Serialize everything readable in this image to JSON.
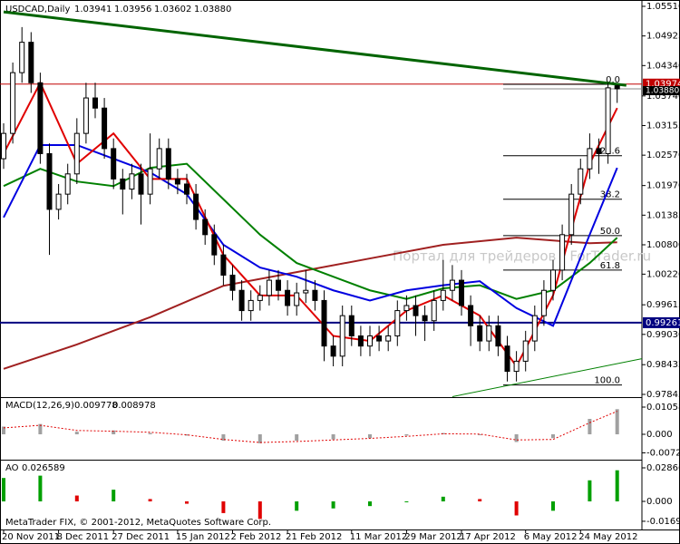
{
  "chart_data": {
    "type": "candlestick",
    "title": "USDCAD,Daily",
    "ohlc_labels": [
      "1.03941",
      "1.03956",
      "1.03602",
      "1.03880"
    ],
    "watermark": "Портал для трейдеров - ForTrader.ru",
    "footer": "MetaTrader FIX, © 2001-2012, MetaQuotes Software Corp.",
    "categories": [
      "20 Nov 2011",
      null,
      null,
      null,
      null,
      null,
      "8 Dec 2011",
      null,
      null,
      null,
      null,
      null,
      "27 Dec 2011",
      null,
      null,
      null,
      null,
      null,
      null,
      "15 Jan 2012",
      null,
      null,
      null,
      null,
      null,
      "2 Feb 2012",
      null,
      null,
      null,
      null,
      null,
      "21 Feb 2012",
      null,
      null,
      null,
      null,
      null,
      null,
      "11 Mar 2012",
      null,
      null,
      null,
      null,
      null,
      "29 Mar 2012",
      null,
      null,
      null,
      null,
      null,
      "17 Apr 2012",
      null,
      null,
      null,
      null,
      null,
      null,
      "6 May 2012",
      null,
      null,
      null,
      null,
      null,
      "24 May 2012",
      null,
      null,
      null,
      null
    ],
    "open": [
      1.025,
      1.03,
      1.042,
      1.048,
      1.04,
      1.026,
      1.015,
      1.018,
      1.022,
      1.03,
      1.037,
      1.035,
      1.027,
      1.021,
      1.019,
      1.022,
      1.018,
      1.023,
      1.027,
      1.021,
      1.02,
      1.018,
      1.013,
      1.01,
      1.006,
      1.002,
      0.999,
      0.995,
      0.997,
      0.998,
      1.001,
      0.999,
      0.996,
      0.9985,
      0.999,
      0.997,
      0.988,
      0.986,
      0.994,
      0.99,
      0.988,
      0.99,
      0.989,
      0.99,
      0.995,
      0.996,
      0.994,
      0.993,
      0.997,
      0.999,
      1.001,
      0.996,
      0.992,
      0.989,
      0.992,
      0.988,
      0.983,
      0.985,
      0.989,
      0.994,
      0.999,
      1.003,
      1.01,
      1.018,
      1.023,
      1.027,
      1.026,
      1.03941
    ],
    "high": [
      1.032,
      1.044,
      1.051,
      1.05,
      1.042,
      1.028,
      1.02,
      1.024,
      1.033,
      1.04,
      1.04,
      1.037,
      1.029,
      1.023,
      1.024,
      1.024,
      1.03,
      1.029,
      1.029,
      1.023,
      1.022,
      1.02,
      1.015,
      1.012,
      1.008,
      1.004,
      1.001,
      0.999,
      1.0,
      1.003,
      1.003,
      1.001,
      1.0005,
      1.003,
      1.001,
      0.999,
      0.99,
      0.996,
      0.996,
      0.992,
      0.992,
      0.992,
      0.992,
      0.997,
      0.998,
      0.998,
      0.996,
      0.999,
      1.005,
      1.004,
      1.003,
      0.998,
      0.994,
      0.994,
      0.994,
      0.99,
      0.987,
      0.991,
      0.996,
      1.001,
      1.005,
      1.012,
      1.02,
      1.025,
      1.03,
      1.029,
      1.04,
      1.03956
    ],
    "low": [
      1.023,
      1.028,
      1.04,
      1.038,
      1.024,
      1.006,
      1.013,
      1.016,
      1.02,
      1.028,
      1.033,
      1.025,
      1.019,
      1.014,
      1.017,
      1.012,
      1.016,
      1.021,
      1.019,
      1.018,
      1.016,
      1.011,
      1.008,
      1.004,
      1.0,
      0.997,
      0.993,
      0.993,
      0.995,
      0.996,
      0.997,
      0.994,
      0.994,
      0.9965,
      0.995,
      0.985,
      0.984,
      0.984,
      0.988,
      0.986,
      0.986,
      0.987,
      0.987,
      0.988,
      0.993,
      0.99,
      0.989,
      0.991,
      0.995,
      0.997,
      0.994,
      0.988,
      0.987,
      0.987,
      0.986,
      0.981,
      0.981,
      0.983,
      0.987,
      0.992,
      0.997,
      1.001,
      1.008,
      1.016,
      1.021,
      1.022,
      1.024,
      1.03602
    ],
    "close": [
      1.03,
      1.042,
      1.048,
      1.04,
      1.026,
      1.015,
      1.018,
      1.022,
      1.03,
      1.037,
      1.035,
      1.027,
      1.021,
      1.019,
      1.022,
      1.018,
      1.023,
      1.027,
      1.021,
      1.02,
      1.018,
      1.013,
      1.01,
      1.006,
      1.002,
      0.999,
      0.995,
      0.997,
      0.998,
      1.001,
      0.999,
      0.996,
      0.9985,
      0.999,
      0.997,
      0.988,
      0.986,
      0.994,
      0.99,
      0.988,
      0.99,
      0.989,
      0.99,
      0.995,
      0.996,
      0.994,
      0.993,
      0.997,
      0.999,
      1.001,
      0.996,
      0.992,
      0.989,
      0.992,
      0.988,
      0.983,
      0.985,
      0.989,
      0.994,
      0.999,
      1.003,
      1.01,
      1.018,
      1.023,
      1.027,
      1.026,
      1.039,
      1.0388
    ],
    "moving_averages": [
      {
        "color": "#e00000",
        "x": [
          0,
          4,
          8,
          12,
          16,
          20,
          24,
          28,
          32,
          36,
          40,
          44,
          48,
          52,
          56,
          60,
          64,
          67
        ],
        "values": [
          1.026,
          1.04,
          1.024,
          1.03,
          1.021,
          1.021,
          1.006,
          0.998,
          0.998,
          0.99,
          0.989,
          0.995,
          0.998,
          0.994,
          0.984,
          0.998,
          1.024,
          1.035
        ]
      },
      {
        "color": "#0000e0",
        "x": [
          0,
          4,
          8,
          12,
          16,
          20,
          24,
          28,
          32,
          36,
          40,
          44,
          48,
          52,
          56,
          60,
          64,
          67
        ],
        "values": [
          1.0134,
          1.0277,
          1.0277,
          1.025,
          1.0223,
          1.018,
          1.008,
          1.0035,
          1.0017,
          0.999,
          0.997,
          0.999,
          1.0,
          1.0008,
          0.9955,
          0.992,
          1.01,
          1.0232
        ]
      },
      {
        "color": "#008000",
        "x": [
          0,
          4,
          8,
          12,
          16,
          20,
          24,
          28,
          32,
          36,
          40,
          44,
          48,
          52,
          56,
          60,
          64,
          67
        ],
        "values": [
          1.0196,
          1.023,
          1.0205,
          1.0196,
          1.0232,
          1.024,
          1.017,
          1.01,
          1.0044,
          1.0017,
          0.999,
          0.9973,
          0.9994,
          1.0,
          0.9973,
          0.999,
          1.0044,
          1.0094
        ]
      },
      {
        "color": "#a02020",
        "x": [
          0,
          8,
          16,
          24,
          32,
          40,
          48,
          56,
          64,
          67
        ],
        "values": [
          0.9835,
          0.9883,
          0.9937,
          0.9999,
          1.0026,
          1.0053,
          1.008,
          1.0094,
          1.0083,
          1.0085
        ]
      }
    ],
    "trendlines": [
      {
        "color": "#006400",
        "width": 3,
        "x": [
          0,
          68
        ],
        "values": [
          1.054,
          1.0395
        ]
      },
      {
        "color": "#008000",
        "width": 1,
        "x": [
          49,
          69.7
        ],
        "values": [
          0.978,
          0.9855
        ]
      }
    ],
    "levels": [
      {
        "value": 1.03974,
        "color": "#c00000"
      },
      {
        "value": 0.99261,
        "color": "#000080"
      }
    ],
    "fibonacci": [
      {
        "label": "0.0",
        "value": 1.0397
      },
      {
        "label": "23.6",
        "value": 1.0256
      },
      {
        "label": "38.2",
        "value": 1.017
      },
      {
        "label": "50.0",
        "value": 1.0098
      },
      {
        "label": "61.8",
        "value": 1.003
      },
      {
        "label": "100.0",
        "value": 0.9803
      }
    ],
    "ylim": [
      0.97791,
      1.05635
    ],
    "yticks": [
      {
        "value": 1.0551,
        "label": "1.05510"
      },
      {
        "value": 1.04925,
        "label": "1.04925"
      },
      {
        "value": 1.0434,
        "label": "1.04340"
      },
      {
        "value": 1.0374,
        "label": "1.03740"
      },
      {
        "value": 1.03155,
        "label": "1.03155"
      },
      {
        "value": 1.0257,
        "label": "1.02570"
      },
      {
        "value": 1.0197,
        "label": "1.01970"
      },
      {
        "value": 1.01385,
        "label": "1.01385"
      },
      {
        "value": 1.008,
        "label": "1.00800"
      },
      {
        "value": 1.0022,
        "label": "1.00220"
      },
      {
        "value": 0.99615,
        "label": "0.99615"
      },
      {
        "value": 0.9903,
        "label": "0.99030"
      },
      {
        "value": 0.98432,
        "label": "0.98432"
      },
      {
        "value": 0.97845,
        "label": "0.97845"
      }
    ],
    "indicators": [
      {
        "type": "macd",
        "title": "MACD(12,26,9)",
        "color": "#a0a0a0",
        "signal_color": "#e00000",
        "x": [
          0,
          4,
          8,
          12,
          16,
          20,
          24,
          28,
          32,
          36,
          40,
          44,
          48,
          52,
          56,
          60,
          64,
          67
        ],
        "values": [
          0.003,
          0.004,
          0.001,
          0.0015,
          0.0005,
          -0.0005,
          -0.0025,
          -0.0035,
          -0.0025,
          -0.002,
          -0.0015,
          -0.0005,
          0.0005,
          0.0,
          -0.003,
          -0.0015,
          0.006,
          0.009778
        ],
        "signal": [
          0.0025,
          0.0035,
          0.0015,
          0.0012,
          0.0008,
          -0.0002,
          -0.002,
          -0.0032,
          -0.0028,
          -0.0022,
          -0.0016,
          -0.0008,
          0.0002,
          0.0001,
          -0.0022,
          -0.002,
          0.0045,
          0.008978
        ],
        "ylim": [
          -0.00988,
          0.01412
        ],
        "yticks": [
          0.010588,
          {
            "value": 0,
            "label": "0.000"
          },
          -0.00721
        ]
      },
      {
        "type": "ao",
        "title": "AO",
        "up_color": "#00a000",
        "down_color": "#e00000",
        "x": [
          0,
          4,
          8,
          12,
          16,
          20,
          24,
          28,
          32,
          36,
          40,
          44,
          48,
          52,
          56,
          60,
          64,
          67
        ],
        "values": [
          0.02,
          0.022,
          0.005,
          0.01,
          0.002,
          -0.002,
          -0.01,
          -0.015,
          -0.008,
          -0.006,
          -0.004,
          0.0,
          0.004,
          0.002,
          -0.012,
          -0.008,
          0.018,
          0.026589
        ],
        "ylim": [
          -0.02402,
          0.03487
        ],
        "yticks": [
          0.028664,
          {
            "value": 0,
            "label": "0.000"
          },
          -0.01699
        ]
      }
    ]
  }
}
